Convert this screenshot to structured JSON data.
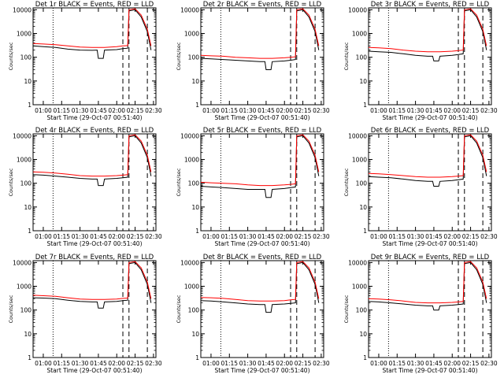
{
  "chart_data": {
    "type": "line",
    "layout": "3x3 grid",
    "xlabel": "Start Time (29-Oct-07 00:51:40)",
    "ylabel": "Counts/sec",
    "x_tick_labels": [
      "01:00",
      "01:15",
      "01:30",
      "01:45",
      "02:00",
      "02:15",
      "02:30"
    ],
    "y_tick_labels": [
      "1",
      "10",
      "100",
      "1000",
      "10000"
    ],
    "xlim": [
      "00:51:40",
      "02:32:00"
    ],
    "ylim": [
      1,
      12000
    ],
    "yscale": "log",
    "grid": false,
    "vertical_markers": {
      "dotted": [
        "01:08"
      ],
      "dashed": [
        "02:05",
        "02:10",
        "02:25"
      ]
    },
    "colors": {
      "events": "#000000",
      "lld": "#ff0000",
      "axes": "#000000"
    },
    "panels": [
      {
        "title": "Det 1r BLACK = Events, RED = LLD",
        "series": [
          {
            "name": "Events",
            "x": [
              "00:51:40",
              "01:00",
              "01:10",
              "01:20",
              "01:30",
              "01:40",
              "01:44",
              "01:45",
              "01:49",
              "01:50",
              "02:00",
              "02:05",
              "02:09",
              "02:10",
              "02:15",
              "02:20",
              "02:25",
              "02:28"
            ],
            "values": [
              300,
              280,
              260,
              220,
              200,
              195,
              200,
              90,
              90,
              200,
              210,
              230,
              240,
              9000,
              10000,
              5000,
              1200,
              200
            ]
          },
          {
            "name": "LLD",
            "x": [
              "00:51:40",
              "01:00",
              "01:10",
              "01:20",
              "01:30",
              "01:40",
              "01:50",
              "02:00",
              "02:05",
              "02:09",
              "02:10",
              "02:15",
              "02:20",
              "02:25",
              "02:28"
            ],
            "values": [
              380,
              360,
              340,
              300,
              270,
              260,
              260,
              280,
              300,
              310,
              10000,
              11000,
              6000,
              1500,
              300
            ]
          }
        ]
      },
      {
        "title": "Det 2r BLACK = Events, RED = LLD",
        "series": [
          {
            "name": "Events",
            "x": [
              "00:51:40",
              "01:00",
              "01:10",
              "01:20",
              "01:30",
              "01:40",
              "01:44",
              "01:45",
              "01:49",
              "01:50",
              "02:00",
              "02:05",
              "02:09",
              "02:10",
              "02:15",
              "02:20",
              "02:25",
              "02:28"
            ],
            "values": [
              90,
              85,
              80,
              75,
              70,
              65,
              65,
              30,
              30,
              65,
              70,
              75,
              80,
              9000,
              10000,
              5000,
              1200,
              200
            ]
          },
          {
            "name": "LLD",
            "x": [
              "00:51:40",
              "01:00",
              "01:10",
              "01:20",
              "01:30",
              "01:40",
              "01:50",
              "02:00",
              "02:05",
              "02:09",
              "02:10",
              "02:15",
              "02:20",
              "02:25",
              "02:28"
            ],
            "values": [
              120,
              115,
              110,
              100,
              95,
              90,
              90,
              95,
              100,
              105,
              10000,
              11000,
              6000,
              1500,
              300
            ]
          }
        ]
      },
      {
        "title": "Det 3r BLACK = Events, RED = LLD",
        "series": [
          {
            "name": "Events",
            "x": [
              "00:51:40",
              "01:00",
              "01:10",
              "01:20",
              "01:30",
              "01:40",
              "01:44",
              "01:45",
              "01:49",
              "01:50",
              "02:00",
              "02:05",
              "02:09",
              "02:10",
              "02:15",
              "02:20",
              "02:25",
              "02:28"
            ],
            "values": [
              180,
              170,
              160,
              140,
              120,
              110,
              110,
              70,
              70,
              110,
              120,
              130,
              140,
              9000,
              10000,
              5000,
              1200,
              200
            ]
          },
          {
            "name": "LLD",
            "x": [
              "00:51:40",
              "01:00",
              "01:10",
              "01:20",
              "01:30",
              "01:40",
              "01:50",
              "02:00",
              "02:05",
              "02:09",
              "02:10",
              "02:15",
              "02:20",
              "02:25",
              "02:28"
            ],
            "values": [
              260,
              250,
              230,
              200,
              180,
              170,
              170,
              180,
              190,
              200,
              10000,
              11000,
              6000,
              1500,
              300
            ]
          }
        ]
      },
      {
        "title": "Det 4r BLACK = Events, RED = LLD",
        "series": [
          {
            "name": "Events",
            "x": [
              "00:51:40",
              "01:00",
              "01:10",
              "01:20",
              "01:30",
              "01:40",
              "01:44",
              "01:45",
              "01:49",
              "01:50",
              "02:00",
              "02:05",
              "02:09",
              "02:10",
              "02:15",
              "02:20",
              "02:25",
              "02:28"
            ],
            "values": [
              230,
              220,
              200,
              180,
              160,
              150,
              150,
              80,
              80,
              150,
              160,
              170,
              180,
              9000,
              10000,
              5000,
              1200,
              200
            ]
          },
          {
            "name": "LLD",
            "x": [
              "00:51:40",
              "01:00",
              "01:10",
              "01:20",
              "01:30",
              "01:40",
              "01:50",
              "02:00",
              "02:05",
              "02:09",
              "02:10",
              "02:15",
              "02:20",
              "02:25",
              "02:28"
            ],
            "values": [
              300,
              290,
              270,
              240,
              210,
              200,
              200,
              210,
              220,
              230,
              10000,
              11000,
              6000,
              1500,
              300
            ]
          }
        ]
      },
      {
        "title": "Det 5r BLACK = Events, RED = LLD",
        "series": [
          {
            "name": "Events",
            "x": [
              "00:51:40",
              "01:00",
              "01:10",
              "01:20",
              "01:30",
              "01:40",
              "01:44",
              "01:45",
              "01:49",
              "01:50",
              "02:00",
              "02:05",
              "02:09",
              "02:10",
              "02:15",
              "02:20",
              "02:25",
              "02:28"
            ],
            "values": [
              75,
              70,
              65,
              60,
              55,
              55,
              55,
              25,
              25,
              55,
              60,
              65,
              70,
              9000,
              10000,
              5000,
              1200,
              200
            ]
          },
          {
            "name": "LLD",
            "x": [
              "00:51:40",
              "01:00",
              "01:10",
              "01:20",
              "01:30",
              "01:40",
              "01:50",
              "02:00",
              "02:05",
              "02:09",
              "02:10",
              "02:15",
              "02:20",
              "02:25",
              "02:28"
            ],
            "values": [
              110,
              105,
              100,
              95,
              85,
              80,
              80,
              85,
              90,
              95,
              10000,
              11000,
              6000,
              1500,
              300
            ]
          }
        ]
      },
      {
        "title": "Det 6r BLACK = Events, RED = LLD",
        "series": [
          {
            "name": "Events",
            "x": [
              "00:51:40",
              "01:00",
              "01:10",
              "01:20",
              "01:30",
              "01:40",
              "01:44",
              "01:45",
              "01:49",
              "01:50",
              "02:00",
              "02:05",
              "02:09",
              "02:10",
              "02:15",
              "02:20",
              "02:25",
              "02:28"
            ],
            "values": [
              190,
              180,
              170,
              150,
              130,
              120,
              120,
              75,
              75,
              120,
              130,
              140,
              150,
              9000,
              10000,
              5000,
              1200,
              200
            ]
          },
          {
            "name": "LLD",
            "x": [
              "00:51:40",
              "01:00",
              "01:10",
              "01:20",
              "01:30",
              "01:40",
              "01:50",
              "02:00",
              "02:05",
              "02:09",
              "02:10",
              "02:15",
              "02:20",
              "02:25",
              "02:28"
            ],
            "values": [
              260,
              250,
              230,
              210,
              190,
              180,
              180,
              190,
              200,
              210,
              10000,
              11000,
              6000,
              1500,
              300
            ]
          }
        ]
      },
      {
        "title": "Det 7r BLACK = Events, RED = LLD",
        "series": [
          {
            "name": "Events",
            "x": [
              "00:51:40",
              "01:00",
              "01:10",
              "01:20",
              "01:30",
              "01:40",
              "01:44",
              "01:45",
              "01:49",
              "01:50",
              "02:00",
              "02:05",
              "02:09",
              "02:10",
              "02:15",
              "02:20",
              "02:25",
              "02:28"
            ],
            "values": [
              330,
              320,
              300,
              260,
              230,
              220,
              220,
              120,
              120,
              220,
              230,
              250,
              260,
              9000,
              10000,
              5000,
              1200,
              200
            ]
          },
          {
            "name": "LLD",
            "x": [
              "00:51:40",
              "01:00",
              "01:10",
              "01:20",
              "01:30",
              "01:40",
              "01:50",
              "02:00",
              "02:05",
              "02:09",
              "02:10",
              "02:15",
              "02:20",
              "02:25",
              "02:28"
            ],
            "values": [
              420,
              400,
              380,
              330,
              290,
              280,
              280,
              290,
              310,
              320,
              10000,
              11000,
              6000,
              1500,
              300
            ]
          }
        ]
      },
      {
        "title": "Det 8r BLACK = Events, RED = LLD",
        "series": [
          {
            "name": "Events",
            "x": [
              "00:51:40",
              "01:00",
              "01:10",
              "01:20",
              "01:30",
              "01:40",
              "01:44",
              "01:45",
              "01:49",
              "01:50",
              "02:00",
              "02:05",
              "02:09",
              "02:10",
              "02:15",
              "02:20",
              "02:25",
              "02:28"
            ],
            "values": [
              250,
              240,
              220,
              200,
              180,
              170,
              170,
              80,
              80,
              170,
              180,
              190,
              200,
              9000,
              10000,
              5000,
              1200,
              200
            ]
          },
          {
            "name": "LLD",
            "x": [
              "00:51:40",
              "01:00",
              "01:10",
              "01:20",
              "01:30",
              "01:40",
              "01:50",
              "02:00",
              "02:05",
              "02:09",
              "02:10",
              "02:15",
              "02:20",
              "02:25",
              "02:28"
            ],
            "values": [
              340,
              330,
              310,
              280,
              250,
              240,
              240,
              250,
              270,
              280,
              10000,
              11000,
              6000,
              1500,
              300
            ]
          }
        ]
      },
      {
        "title": "Det 9r BLACK = Events, RED = LLD",
        "series": [
          {
            "name": "Events",
            "x": [
              "00:51:40",
              "01:00",
              "01:10",
              "01:20",
              "01:30",
              "01:40",
              "01:44",
              "01:45",
              "01:49",
              "01:50",
              "02:00",
              "02:05",
              "02:09",
              "02:10",
              "02:15",
              "02:20",
              "02:25",
              "02:28"
            ],
            "values": [
              230,
              220,
              200,
              180,
              160,
              150,
              150,
              100,
              100,
              150,
              160,
              170,
              180,
              9000,
              10000,
              5000,
              1200,
              200
            ]
          },
          {
            "name": "LLD",
            "x": [
              "00:51:40",
              "01:00",
              "01:10",
              "01:20",
              "01:30",
              "01:40",
              "01:50",
              "02:00",
              "02:05",
              "02:09",
              "02:10",
              "02:15",
              "02:20",
              "02:25",
              "02:28"
            ],
            "values": [
              300,
              290,
              270,
              240,
              210,
              200,
              200,
              210,
              220,
              230,
              10000,
              11000,
              6000,
              1500,
              300
            ]
          }
        ]
      }
    ]
  }
}
